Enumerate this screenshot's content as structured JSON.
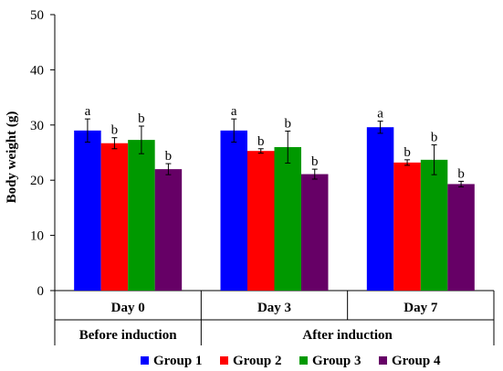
{
  "chart_data": {
    "type": "bar",
    "ylabel": "Body weight (g)",
    "ylim": [
      0,
      50
    ],
    "yticks": [
      0,
      10,
      20,
      30,
      40,
      50
    ],
    "categories": [
      "Day 0",
      "Day 3",
      "Day 7"
    ],
    "category_groups": [
      {
        "label": "Before induction",
        "categories": [
          "Day 0"
        ]
      },
      {
        "label": "After induction",
        "categories": [
          "Day 3",
          "Day 7"
        ]
      }
    ],
    "series": [
      {
        "name": "Group 1",
        "color": "#0000ff",
        "values": [
          29.0,
          29.0,
          29.6
        ],
        "errors": [
          2.1,
          2.1,
          1.1
        ],
        "labels": [
          "a",
          "a",
          "a"
        ]
      },
      {
        "name": "Group 2",
        "color": "#ff0000",
        "values": [
          26.7,
          25.3,
          23.2
        ],
        "errors": [
          1.0,
          0.4,
          0.5
        ],
        "labels": [
          "b",
          "b",
          "b"
        ]
      },
      {
        "name": "Group 3",
        "color": "#009900",
        "values": [
          27.3,
          26.0,
          23.7
        ],
        "errors": [
          2.5,
          2.9,
          2.7
        ],
        "labels": [
          "b",
          "b",
          "b"
        ]
      },
      {
        "name": "Group 4",
        "color": "#660066",
        "values": [
          22.0,
          21.1,
          19.3
        ],
        "errors": [
          1.0,
          0.9,
          0.5
        ],
        "labels": [
          "b",
          "b",
          "b"
        ]
      }
    ],
    "legend_position": "bottom",
    "grid": false
  }
}
